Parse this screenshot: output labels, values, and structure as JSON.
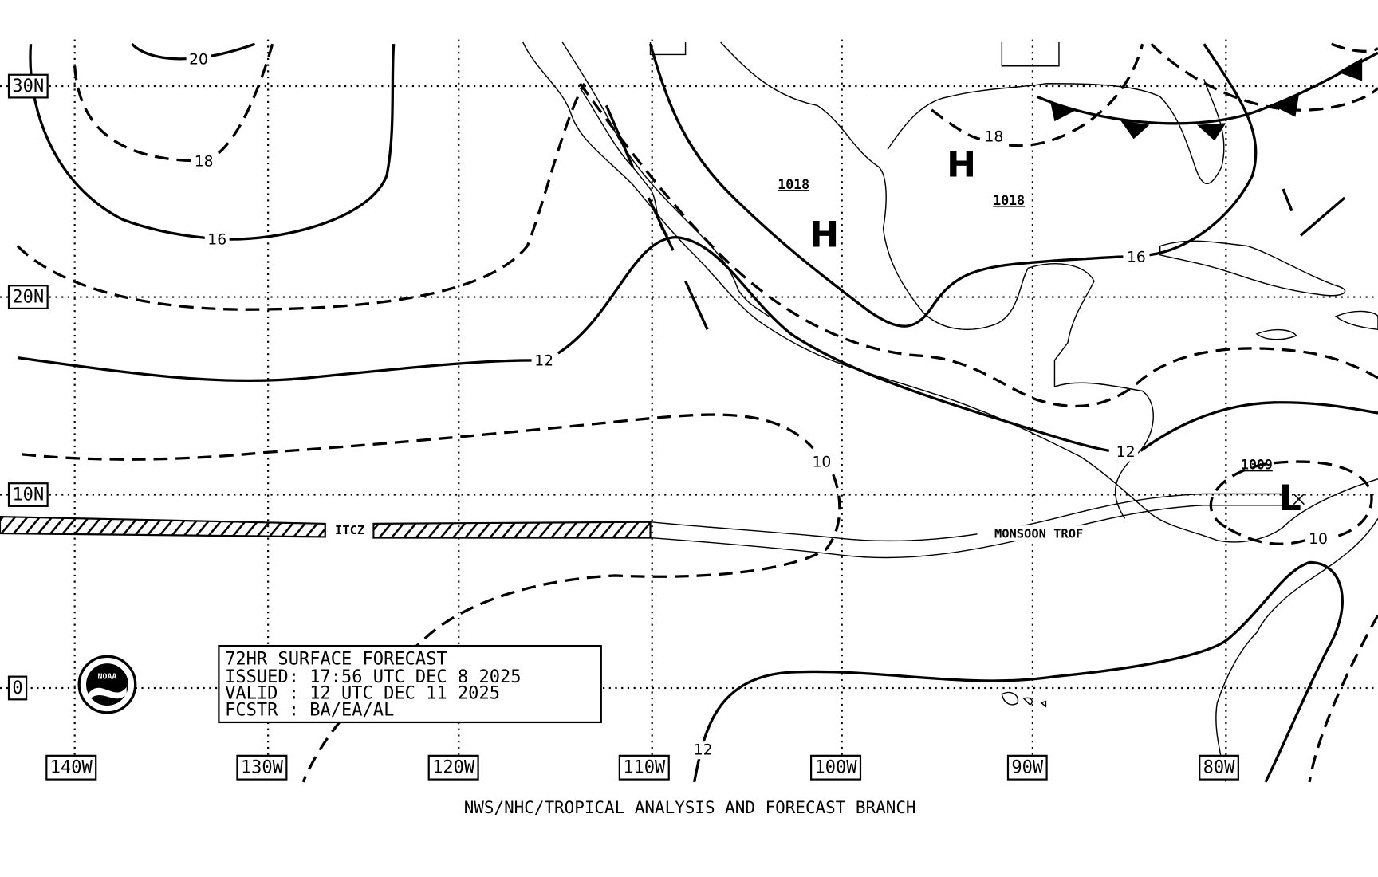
{
  "grid": {
    "latitudes": [
      "30N",
      "20N",
      "10N",
      "0"
    ],
    "longitudes": [
      "140W",
      "130W",
      "120W",
      "110W",
      "100W",
      "90W",
      "80W"
    ]
  },
  "contour_labels": [
    "20",
    "18",
    "16",
    "12",
    "12",
    "10",
    "12",
    "16",
    "18",
    "10"
  ],
  "pressure_centers": [
    {
      "symbol": "H",
      "pressure": "1018"
    },
    {
      "symbol": "H",
      "pressure": "1018"
    },
    {
      "symbol": "L",
      "pressure": "1009"
    }
  ],
  "features": [
    "ITCZ",
    "MONSOON TROF"
  ],
  "logo": "NOAA",
  "info_box": [
    "72HR SURFACE FORECAST",
    "ISSUED: 17:56 UTC DEC 8 2025",
    "VALID : 12 UTC DEC 11 2025",
    "FCSTR : BA/EA/AL"
  ],
  "footer": "NWS/NHC/TROPICAL ANALYSIS AND FORECAST BRANCH"
}
